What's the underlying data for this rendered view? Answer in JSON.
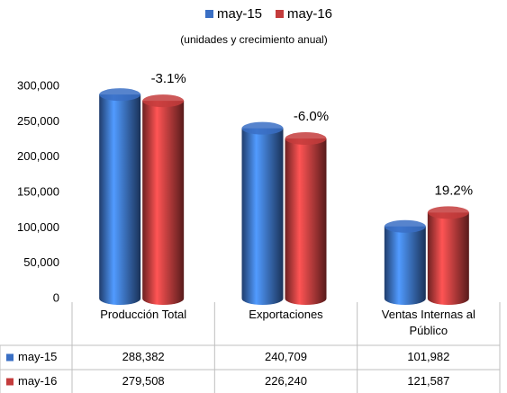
{
  "chart_data": {
    "type": "bar",
    "subtitle": "(unidades y crecimiento anual)",
    "categories": [
      "Producción Total",
      "Exportaciones",
      "Ventas Internas al Público"
    ],
    "series": [
      {
        "name": "may-15",
        "color": "#3a6fc4",
        "values": [
          288382,
          240709,
          101982
        ],
        "value_labels": [
          "288,382",
          "240,709",
          "101,982"
        ]
      },
      {
        "name": "may-16",
        "color": "#c43c3c",
        "values": [
          279508,
          226240,
          121587
        ],
        "value_labels": [
          "279,508",
          "226,240",
          "121,587"
        ]
      }
    ],
    "annotations": [
      "-3.1%",
      "-6.0%",
      "19.2%"
    ],
    "ylim": [
      0,
      300000
    ],
    "yticks": [
      0,
      {
        "value": 50000,
        "label": "50,000"
      },
      {
        "value": 100000,
        "label": "100,000"
      },
      {
        "value": 150000,
        "label": "150,000"
      },
      {
        "value": 200000,
        "label": "200,000"
      },
      {
        "value": 250000,
        "label": "250,000"
      },
      {
        "value": 300000,
        "label": "300,000"
      }
    ],
    "legend": "top"
  }
}
